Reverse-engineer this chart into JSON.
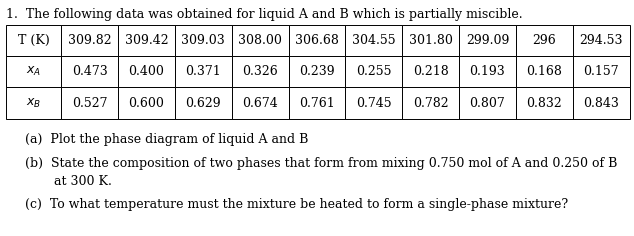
{
  "title": "1.  The following data was obtained for liquid A and B which is partially miscible.",
  "row_label_texts": [
    "T (K)",
    "xᴀ",
    "xʙ"
  ],
  "col_values_str": [
    [
      "309.82",
      "309.42",
      "309.03",
      "308.00",
      "306.68",
      "304.55",
      "301.80",
      "299.09",
      "296",
      "294.53"
    ],
    [
      "0.473",
      "0.400",
      "0.371",
      "0.326",
      "0.239",
      "0.255",
      "0.218",
      "0.193",
      "0.168",
      "0.157"
    ],
    [
      "0.527",
      "0.600",
      "0.629",
      "0.674",
      "0.761",
      "0.745",
      "0.782",
      "0.807",
      "0.832",
      "0.843"
    ]
  ],
  "q_a": "(a)  Plot the phase diagram of liquid A and B",
  "q_b1": "(b)  State the composition of two phases that form from mixing 0.750 mol of A and 0.250 of B",
  "q_b2": "       at 300 K.",
  "q_c": "(c)  To what temperature must the mixture be heated to form a single-phase mixture?",
  "bg_color": "#ffffff",
  "text_color": "#000000",
  "title_fontsize": 9.0,
  "table_fontsize": 9.0,
  "q_fontsize": 9.0
}
